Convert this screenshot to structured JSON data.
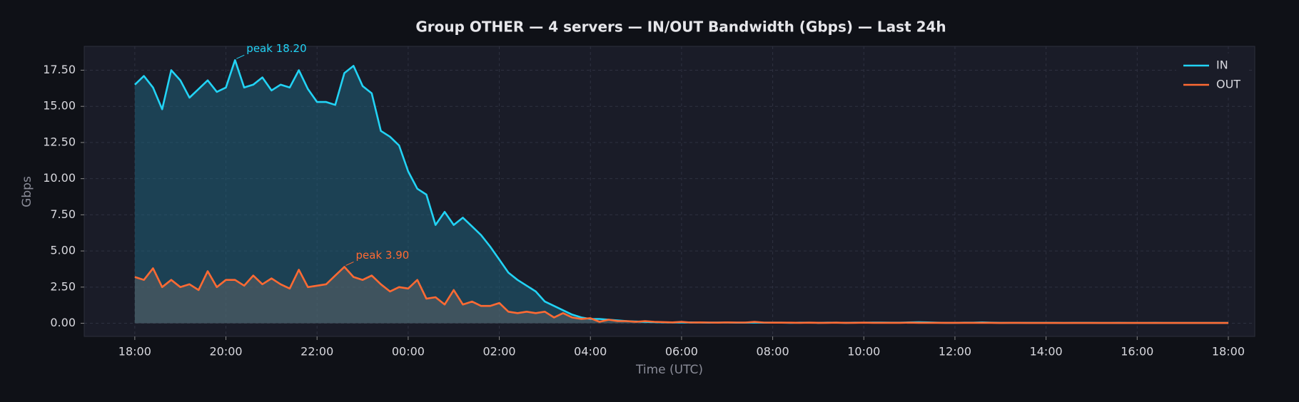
{
  "chart_data": {
    "type": "line",
    "title": "Group OTHER — 4 servers — IN/OUT Bandwidth (Gbps) — Last 24h",
    "xlabel": "Time (UTC)",
    "ylabel": "Gbps",
    "x": [
      0,
      0.2,
      0.4,
      0.6,
      0.8,
      1,
      1.2,
      1.4,
      1.6,
      1.8,
      2,
      2.2,
      2.4,
      2.6,
      2.8,
      3,
      3.2,
      3.4,
      3.6,
      3.8,
      4,
      4.2,
      4.4,
      4.6,
      4.8,
      5,
      5.2,
      5.4,
      5.6,
      5.8,
      6,
      6.2,
      6.4,
      6.6,
      6.8,
      7,
      7.2,
      7.4,
      7.6,
      7.8,
      8,
      8.2,
      8.4,
      8.6,
      8.8,
      9,
      9.2,
      9.4,
      9.6,
      9.8,
      10,
      10.2,
      10.4,
      10.6,
      10.8,
      11,
      11.2,
      11.4,
      11.6,
      11.8,
      12,
      12.2,
      12.4,
      12.6,
      12.8,
      13,
      13.2,
      13.4,
      13.6,
      13.8,
      14,
      14.2,
      14.4,
      14.6,
      14.8,
      15,
      15.2,
      15.4,
      15.6,
      15.8,
      16,
      16.2,
      16.4,
      16.6,
      16.8,
      17,
      17.2,
      17.4,
      17.6,
      17.8,
      18,
      18.2,
      18.4,
      18.6,
      18.8,
      19,
      19.2,
      19.4,
      19.6,
      19.8,
      20,
      20.2,
      20.4,
      20.6,
      20.8,
      21,
      21.2,
      21.4,
      21.6,
      21.8,
      22,
      22.2,
      22.4,
      22.6,
      22.8,
      23,
      23.2,
      23.4,
      23.6,
      23.8,
      24
    ],
    "series": [
      {
        "name": "IN",
        "color": "#22d3f5",
        "fill_color": "#1f6e8a",
        "values": [
          16.5,
          17.1,
          16.3,
          14.8,
          17.5,
          16.8,
          15.6,
          16.2,
          16.8,
          16.0,
          16.3,
          18.2,
          16.3,
          16.5,
          17.0,
          16.1,
          16.5,
          16.3,
          17.5,
          16.2,
          15.3,
          15.3,
          15.1,
          17.3,
          17.8,
          16.4,
          15.9,
          13.3,
          12.9,
          12.3,
          10.5,
          9.3,
          8.9,
          6.8,
          7.7,
          6.8,
          7.3,
          6.7,
          6.1,
          5.3,
          4.4,
          3.5,
          3.0,
          2.6,
          2.2,
          1.5,
          1.2,
          0.9,
          0.6,
          0.4,
          0.3,
          0.3,
          0.25,
          0.2,
          0.15,
          0.12,
          0.1,
          0.08,
          0.06,
          0.05,
          0.05,
          0.06,
          0.05,
          0.04,
          0.05,
          0.05,
          0.04,
          0.04,
          0.05,
          0.04,
          0.04,
          0.04,
          0.03,
          0.04,
          0.04,
          0.03,
          0.04,
          0.04,
          0.03,
          0.04,
          0.04,
          0.05,
          0.05,
          0.04,
          0.04,
          0.06,
          0.07,
          0.06,
          0.04,
          0.03,
          0.03,
          0.04,
          0.04,
          0.06,
          0.04,
          0.03,
          0.03,
          0.03,
          0.03,
          0.03,
          0.03,
          0.03,
          0.02,
          0.03,
          0.03,
          0.03,
          0.02,
          0.02,
          0.03,
          0.02,
          0.02,
          0.02,
          0.03,
          0.02,
          0.02,
          0.02,
          0.02,
          0.02,
          0.02,
          0.02,
          0.02
        ]
      },
      {
        "name": "OUT",
        "color": "#ff6a33",
        "fill_color": "#6a6a6a",
        "values": [
          3.2,
          3.0,
          3.8,
          2.5,
          3.0,
          2.5,
          2.7,
          2.3,
          3.6,
          2.5,
          3.0,
          3.0,
          2.6,
          3.3,
          2.7,
          3.1,
          2.7,
          2.4,
          3.7,
          2.5,
          2.6,
          2.7,
          3.3,
          3.9,
          3.2,
          3.0,
          3.3,
          2.7,
          2.2,
          2.5,
          2.4,
          3.0,
          1.7,
          1.8,
          1.3,
          2.3,
          1.3,
          1.5,
          1.2,
          1.2,
          1.4,
          0.8,
          0.7,
          0.8,
          0.7,
          0.8,
          0.4,
          0.7,
          0.4,
          0.3,
          0.35,
          0.1,
          0.25,
          0.15,
          0.15,
          0.1,
          0.15,
          0.1,
          0.08,
          0.06,
          0.1,
          0.05,
          0.06,
          0.05,
          0.04,
          0.06,
          0.05,
          0.05,
          0.1,
          0.05,
          0.04,
          0.04,
          0.04,
          0.03,
          0.04,
          0.03,
          0.03,
          0.04,
          0.03,
          0.03,
          0.04,
          0.03,
          0.03,
          0.03,
          0.03,
          0.04,
          0.03,
          0.03,
          0.03,
          0.03,
          0.03,
          0.03,
          0.03,
          0.03,
          0.03,
          0.02,
          0.03,
          0.03,
          0.02,
          0.02,
          0.02,
          0.02,
          0.02,
          0.02,
          0.02,
          0.02,
          0.02,
          0.02,
          0.02,
          0.02,
          0.02,
          0.02,
          0.02,
          0.02,
          0.02,
          0.02,
          0.02,
          0.02,
          0.02,
          0.02,
          0.02
        ]
      }
    ],
    "annotations": [
      {
        "text": "peak 18.20",
        "x": 2.2,
        "y": 18.2,
        "color": "#22d3f5"
      },
      {
        "text": "peak 3.90",
        "x": 4.6,
        "y": 3.9,
        "color": "#ff6a33"
      }
    ],
    "xlim": [
      -1.11,
      24.58
    ],
    "ylim": [
      -0.91,
      19.15
    ],
    "xticks": [
      {
        "value": 0,
        "label": "18:00"
      },
      {
        "value": 2,
        "label": "20:00"
      },
      {
        "value": 4,
        "label": "22:00"
      },
      {
        "value": 6,
        "label": "00:00"
      },
      {
        "value": 8,
        "label": "02:00"
      },
      {
        "value": 10,
        "label": "04:00"
      },
      {
        "value": 12,
        "label": "06:00"
      },
      {
        "value": 14,
        "label": "08:00"
      },
      {
        "value": 16,
        "label": "10:00"
      },
      {
        "value": 18,
        "label": "12:00"
      },
      {
        "value": 20,
        "label": "14:00"
      },
      {
        "value": 22,
        "label": "16:00"
      },
      {
        "value": 24,
        "label": "18:00"
      }
    ],
    "yticks": [
      {
        "value": 0,
        "label": "0.00"
      },
      {
        "value": 2.5,
        "label": "2.50"
      },
      {
        "value": 5,
        "label": "5.00"
      },
      {
        "value": 7.5,
        "label": "7.50"
      },
      {
        "value": 10,
        "label": "10.00"
      },
      {
        "value": 12.5,
        "label": "12.50"
      },
      {
        "value": 15,
        "label": "15.00"
      },
      {
        "value": 17.5,
        "label": "17.50"
      }
    ],
    "grid": true,
    "legend": "upper right"
  }
}
